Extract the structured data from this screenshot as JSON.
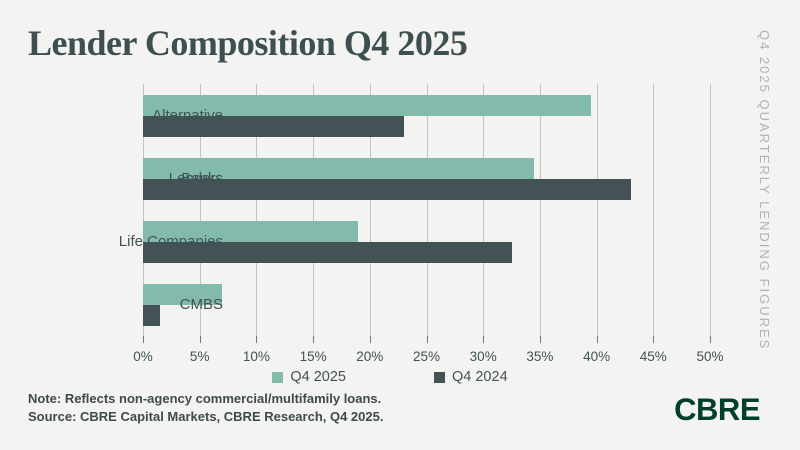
{
  "title": "Lender Composition Q4 2025",
  "side_label": "Q4 2025 QUARTERLY LENDING FIGURES",
  "notes": {
    "note": "Note: Reflects non-agency commercial/multifamily loans.",
    "source": "Source: CBRE Capital Markets, CBRE Research, Q4 2025."
  },
  "logo_text": "CBRE",
  "colors": {
    "background": "#f3f3f1",
    "title_text": "#3e4f51",
    "side_label_text": "#a9b6b3",
    "gridline": "#c2c4c0",
    "axis_text": "#435254",
    "note_text": "#3f4a4c",
    "logo_green": "#003f2d",
    "series_q4_2025": "#82baab",
    "series_q4_2024": "#435254"
  },
  "chart_data": {
    "type": "bar",
    "orientation": "horizontal",
    "title": "Lender Composition Q4 2025",
    "categories": [
      "Alternative Lenders",
      "Banks",
      "Life Companies",
      "CMBS"
    ],
    "series": [
      {
        "name": "Q4 2025",
        "color": "#82baab",
        "values": [
          39.5,
          34.5,
          19,
          7
        ]
      },
      {
        "name": "Q4 2024",
        "color": "#435254",
        "values": [
          23,
          43,
          32.5,
          1.5
        ]
      }
    ],
    "xlabel": "",
    "ylabel": "",
    "xlim": [
      0,
      50
    ],
    "x_ticks": [
      "0%",
      "5%",
      "10%",
      "15%",
      "20%",
      "25%",
      "30%",
      "35%",
      "40%",
      "45%",
      "50%"
    ],
    "grid": "vertical",
    "legend_position": "bottom"
  }
}
